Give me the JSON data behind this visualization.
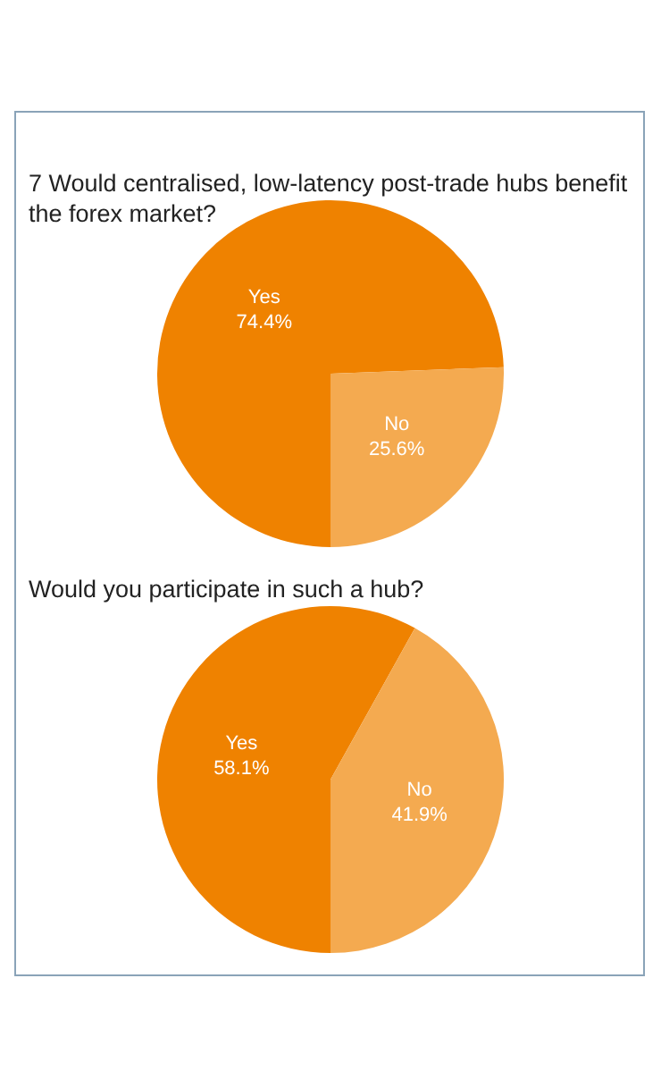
{
  "chart_data": [
    {
      "type": "pie",
      "title": "7 Would centralised, low-latency post-trade hubs benefit the forex market?",
      "categories": [
        "Yes",
        "No"
      ],
      "values": [
        74.4,
        25.6
      ],
      "colors": [
        "#ef8200",
        "#f4aa50"
      ],
      "value_labels": [
        "74.4%",
        "25.6%"
      ],
      "legend": false
    },
    {
      "type": "pie",
      "title": "Would you participate in such a hub?",
      "categories": [
        "Yes",
        "No"
      ],
      "values": [
        58.1,
        41.9
      ],
      "colors": [
        "#ef8200",
        "#f4aa50"
      ],
      "value_labels": [
        "58.1%",
        "41.9%"
      ],
      "legend": false
    }
  ]
}
